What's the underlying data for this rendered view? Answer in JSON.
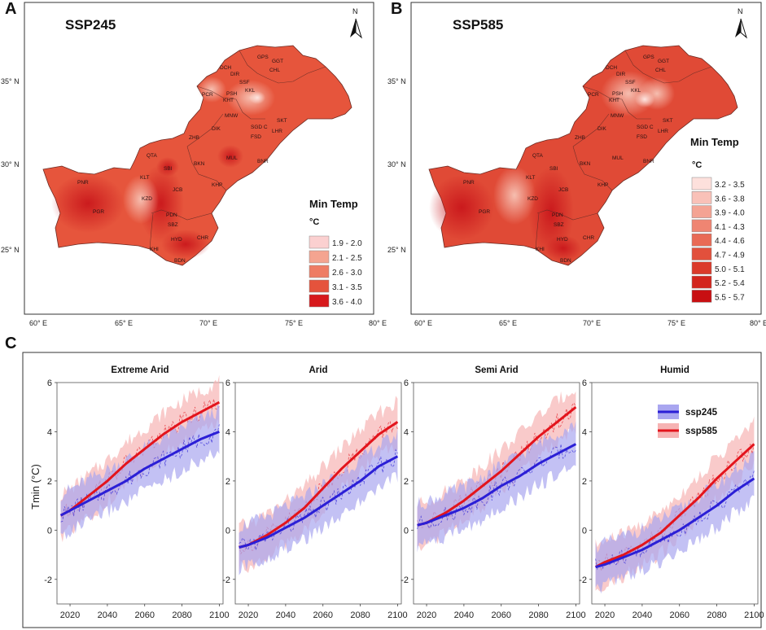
{
  "panels": {
    "a": {
      "letter": "A",
      "scenario": "SSP245",
      "legend_title": "Min Temp",
      "legend_unit": "°C",
      "legend": [
        {
          "label": "1.9 - 2.0",
          "color": "#fbd0d0"
        },
        {
          "label": "2.1 - 2.5",
          "color": "#f4a490"
        },
        {
          "label": "2.6 - 3.0",
          "color": "#ee7c64"
        },
        {
          "label": "3.1 - 3.5",
          "color": "#e5533c"
        },
        {
          "label": "3.6 - 4.0",
          "color": "#d7191c"
        }
      ],
      "lat_labels": [
        "35° N",
        "30° N",
        "25° N"
      ],
      "lon_labels": [
        "60° E",
        "65° E",
        "70° E",
        "75° E",
        "80° E"
      ]
    },
    "b": {
      "letter": "B",
      "scenario": "SSP585",
      "legend_title": "Min Temp",
      "legend_unit": "°C",
      "legend": [
        {
          "label": "3.2 - 3.5",
          "color": "#fde0dc"
        },
        {
          "label": "3.6 - 3.8",
          "color": "#f9c1b8"
        },
        {
          "label": "3.9 - 4.0",
          "color": "#f4a393"
        },
        {
          "label": "4.1 - 4.3",
          "color": "#ef8572"
        },
        {
          "label": "4.4 - 4.6",
          "color": "#e96a55"
        },
        {
          "label": "4.7 - 4.9",
          "color": "#e2503c"
        },
        {
          "label": "5.0 - 5.1",
          "color": "#db3a2a"
        },
        {
          "label": "5.2 - 5.4",
          "color": "#d3241c"
        },
        {
          "label": "5.5 - 5.7",
          "color": "#c80f12"
        }
      ],
      "lat_labels": [
        "35° N",
        "30° N",
        "25° N"
      ],
      "lon_labels": [
        "60° E",
        "65° E",
        "70° E",
        "75° E",
        "80° E"
      ]
    },
    "c": {
      "letter": "C"
    }
  },
  "map_labels": [
    "GPS",
    "GGT",
    "CHL",
    "DCH",
    "DIR",
    "SSF",
    "PCR",
    "PSH",
    "KKL",
    "KHT",
    "MNW",
    "SGD C",
    "SKT",
    "LHR",
    "DIK",
    "ZHB",
    "FSD",
    "QTA",
    "MUL",
    "BKN",
    "BNR",
    "PNR",
    "KLT",
    "SBI",
    "JCB",
    "KHP",
    "KZD",
    "PGR",
    "PDN",
    "SBZ",
    "HYD",
    "CHR",
    "KHI",
    "BDN"
  ],
  "compass": "N",
  "colors": {
    "ssp245": "#2b1fd6",
    "ssp585": "#e3141c",
    "ssp245_band": "#a9a6f0",
    "ssp585_band": "#f6b3b3"
  },
  "chart_data": [
    {
      "type": "line",
      "title": "Extreme Arid",
      "ylabel": "Tmin (°C)",
      "xlim": [
        2013,
        2102
      ],
      "ylim": [
        -3,
        6
      ],
      "xticks": [
        "2020",
        "2040",
        "2060",
        "2080",
        "2100"
      ],
      "yticks": [
        "-2",
        "0",
        "2",
        "4",
        "6"
      ],
      "x": [
        2015,
        2020,
        2030,
        2040,
        2050,
        2060,
        2070,
        2080,
        2090,
        2100
      ],
      "series": [
        {
          "name": "ssp245",
          "values": [
            0.6,
            0.8,
            1.2,
            1.6,
            2.0,
            2.5,
            2.9,
            3.3,
            3.7,
            4.0
          ]
        },
        {
          "name": "ssp585",
          "values": [
            0.6,
            0.8,
            1.4,
            2.0,
            2.7,
            3.3,
            3.9,
            4.4,
            4.8,
            5.2
          ]
        }
      ]
    },
    {
      "type": "line",
      "title": "Arid",
      "xlim": [
        2013,
        2102
      ],
      "ylim": [
        -3,
        6
      ],
      "xticks": [
        "2020",
        "2040",
        "2060",
        "2080",
        "2100"
      ],
      "yticks": [
        "-2",
        "0",
        "2",
        "4",
        "6"
      ],
      "x": [
        2015,
        2020,
        2030,
        2040,
        2050,
        2060,
        2070,
        2080,
        2090,
        2100
      ],
      "series": [
        {
          "name": "ssp245",
          "values": [
            -0.7,
            -0.6,
            -0.3,
            0.1,
            0.5,
            1.0,
            1.5,
            2.0,
            2.6,
            3.0
          ]
        },
        {
          "name": "ssp585",
          "values": [
            -0.7,
            -0.6,
            -0.2,
            0.3,
            0.9,
            1.7,
            2.5,
            3.2,
            3.9,
            4.4
          ]
        }
      ]
    },
    {
      "type": "line",
      "title": "Semi Arid",
      "xlim": [
        2013,
        2102
      ],
      "ylim": [
        -3,
        6
      ],
      "xticks": [
        "2020",
        "2040",
        "2060",
        "2080",
        "2100"
      ],
      "yticks": [
        "-2",
        "0",
        "2",
        "4",
        "6"
      ],
      "x": [
        2015,
        2020,
        2030,
        2040,
        2050,
        2060,
        2070,
        2080,
        2090,
        2100
      ],
      "series": [
        {
          "name": "ssp245",
          "values": [
            0.2,
            0.3,
            0.6,
            0.9,
            1.3,
            1.8,
            2.2,
            2.7,
            3.1,
            3.5
          ]
        },
        {
          "name": "ssp585",
          "values": [
            0.2,
            0.3,
            0.7,
            1.2,
            1.8,
            2.4,
            3.1,
            3.8,
            4.4,
            5.0
          ]
        }
      ]
    },
    {
      "type": "line",
      "title": "Humid",
      "xlim": [
        2013,
        2102
      ],
      "ylim": [
        -3,
        6
      ],
      "xticks": [
        "2020",
        "2040",
        "2060",
        "2080",
        "2100"
      ],
      "yticks": [
        "-2",
        "0",
        "2",
        "4",
        "6"
      ],
      "x": [
        2015,
        2020,
        2030,
        2040,
        2050,
        2060,
        2070,
        2080,
        2090,
        2100
      ],
      "series": [
        {
          "name": "ssp245",
          "values": [
            -1.5,
            -1.4,
            -1.1,
            -0.8,
            -0.4,
            0.0,
            0.5,
            1.0,
            1.6,
            2.1
          ]
        },
        {
          "name": "ssp585",
          "values": [
            -1.5,
            -1.3,
            -1.0,
            -0.6,
            -0.1,
            0.6,
            1.3,
            2.1,
            2.8,
            3.5
          ]
        }
      ]
    }
  ],
  "legend_c": [
    "ssp245",
    "ssp585"
  ]
}
